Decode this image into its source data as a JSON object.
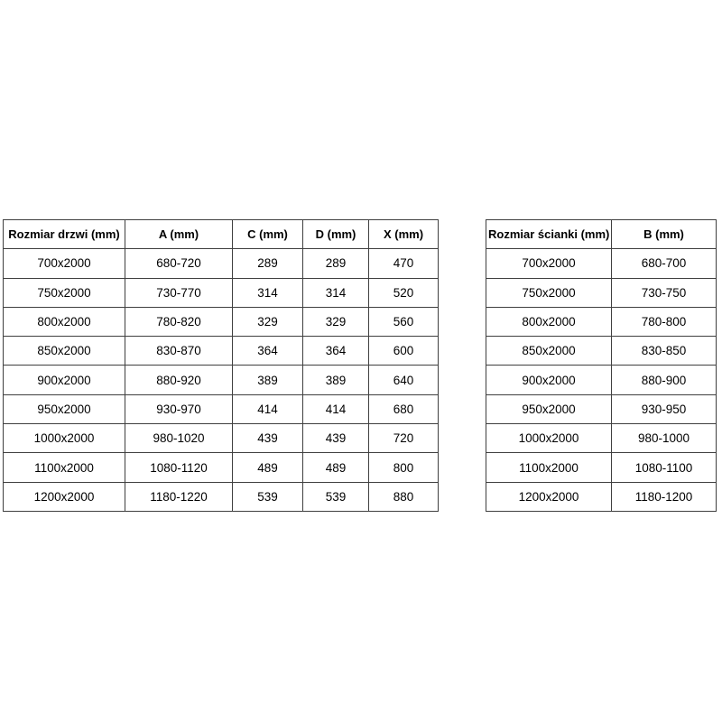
{
  "colors": {
    "background": "#ffffff",
    "border": "#3f3f3f",
    "text": "#000000"
  },
  "tables": [
    {
      "name": "doors-dimensions",
      "headers": [
        "Rozmiar drzwi (mm)",
        "A (mm)",
        "C (mm)",
        "D (mm)",
        "X (mm)"
      ],
      "rows": [
        [
          "700x2000",
          "680-720",
          "289",
          "289",
          "470"
        ],
        [
          "750x2000",
          "730-770",
          "314",
          "314",
          "520"
        ],
        [
          "800x2000",
          "780-820",
          "329",
          "329",
          "560"
        ],
        [
          "850x2000",
          "830-870",
          "364",
          "364",
          "600"
        ],
        [
          "900x2000",
          "880-920",
          "389",
          "389",
          "640"
        ],
        [
          "950x2000",
          "930-970",
          "414",
          "414",
          "680"
        ],
        [
          "1000x2000",
          "980-1020",
          "439",
          "439",
          "720"
        ],
        [
          "1100x2000",
          "1080-1120",
          "489",
          "489",
          "800"
        ],
        [
          "1200x2000",
          "1180-1220",
          "539",
          "539",
          "880"
        ]
      ]
    },
    {
      "name": "walls-dimensions",
      "headers": [
        "Rozmiar ścianki (mm)",
        "B (mm)"
      ],
      "rows": [
        [
          "700x2000",
          "680-700"
        ],
        [
          "750x2000",
          "730-750"
        ],
        [
          "800x2000",
          "780-800"
        ],
        [
          "850x2000",
          "830-850"
        ],
        [
          "900x2000",
          "880-900"
        ],
        [
          "950x2000",
          "930-950"
        ],
        [
          "1000x2000",
          "980-1000"
        ],
        [
          "1100x2000",
          "1080-1100"
        ],
        [
          "1200x2000",
          "1180-1200"
        ]
      ]
    }
  ]
}
